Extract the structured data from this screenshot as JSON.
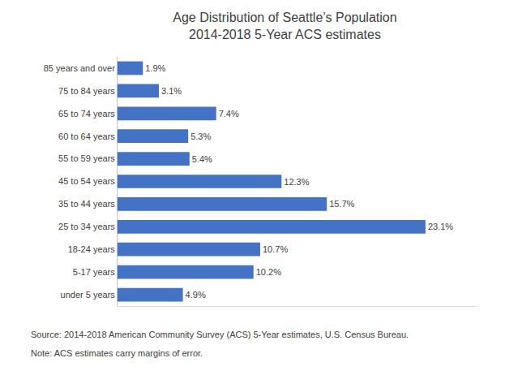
{
  "chart_data": {
    "type": "bar",
    "orientation": "horizontal",
    "title": "Age Distribution of Seattle’s Population",
    "subtitle": "2014-2018 5-Year ACS estimates",
    "categories": [
      "under 5 years",
      "5-17 years",
      "18-24 years",
      "25 to 34 years",
      "35 to 44 years",
      "45 to 54 years",
      "55 to 59 years",
      "60 to 64 years",
      "65 to 74 years",
      "75 to 84 years",
      "85 years and over"
    ],
    "values": [
      4.9,
      10.2,
      10.7,
      23.1,
      15.7,
      12.3,
      5.4,
      5.3,
      7.4,
      3.1,
      1.9
    ],
    "value_labels": [
      "4.9%",
      "10.2%",
      "10.7%",
      "23.1%",
      "15.7%",
      "12.3%",
      "5.4%",
      "5.3%",
      "7.4%",
      "3.1%",
      "1.9%"
    ],
    "color": "#4472c4",
    "data_labels": true,
    "xlim": [
      0,
      27
    ],
    "xticks": [],
    "tick_labels": "y",
    "grid": false,
    "annotations": [
      "Source: 2014-2018 American Community Survey (ACS) 5-Year estimates, U.S. Census Bureau.",
      "Note: ACS estimates carry margins of error."
    ]
  }
}
